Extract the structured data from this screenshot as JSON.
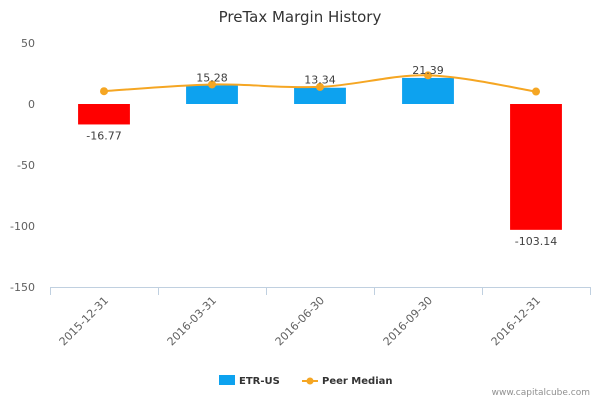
{
  "chart_data": {
    "type": "bar",
    "title": "PreTax Margin History",
    "categories": [
      "2015-12-31",
      "2016-03-31",
      "2016-06-30",
      "2016-09-30",
      "2016-12-31"
    ],
    "series": [
      {
        "name": "ETR-US",
        "kind": "bar",
        "values": [
          -16.77,
          15.28,
          13.34,
          21.39,
          -103.14
        ],
        "data_labels": [
          "-16.77",
          "15.28",
          "13.34",
          "21.39",
          "-103.14"
        ],
        "color_positive": "#0da2ef",
        "color_negative": "#ff0000"
      },
      {
        "name": "Peer Median",
        "kind": "line",
        "values": [
          10.5,
          16.0,
          14.0,
          23.5,
          10.2
        ],
        "color": "#f5a623"
      }
    ],
    "yticks": [
      50,
      0,
      -50,
      -100,
      -150
    ],
    "ylim": [
      -150,
      50
    ],
    "grid": false,
    "legend": "bottom-center"
  },
  "credit": "www.capitalcube.com"
}
